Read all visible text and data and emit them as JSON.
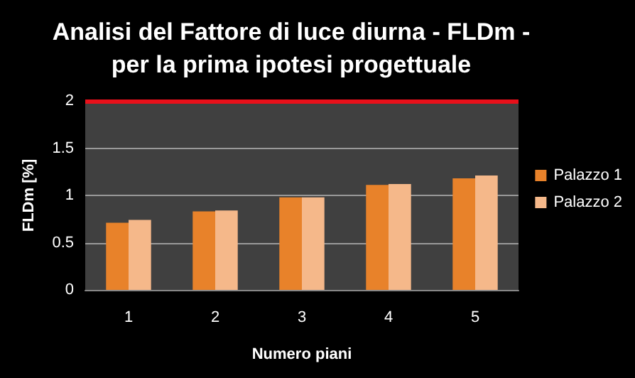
{
  "chart_data": {
    "type": "bar",
    "title": "Analisi del Fattore di luce diurna - FLDm -\nper la prima ipotesi progettuale",
    "xlabel": "Numero piani",
    "ylabel": "FLDm [%]",
    "categories": [
      "1",
      "2",
      "3",
      "4",
      "5"
    ],
    "series": [
      {
        "name": "Palazzo 1",
        "color": "#e8822a",
        "values": [
          0.71,
          0.83,
          0.98,
          1.11,
          1.18
        ]
      },
      {
        "name": "Palazzo 2",
        "color": "#f5b88a",
        "values": [
          0.74,
          0.84,
          0.98,
          1.12,
          1.21
        ]
      }
    ],
    "ylim": [
      0,
      2
    ],
    "yticks": [
      0,
      0.5,
      1,
      1.5,
      2
    ],
    "grid": "y",
    "legend": "right",
    "ref_lines": [
      {
        "axis": "y",
        "value": 2,
        "color": "#e8101a"
      }
    ]
  }
}
